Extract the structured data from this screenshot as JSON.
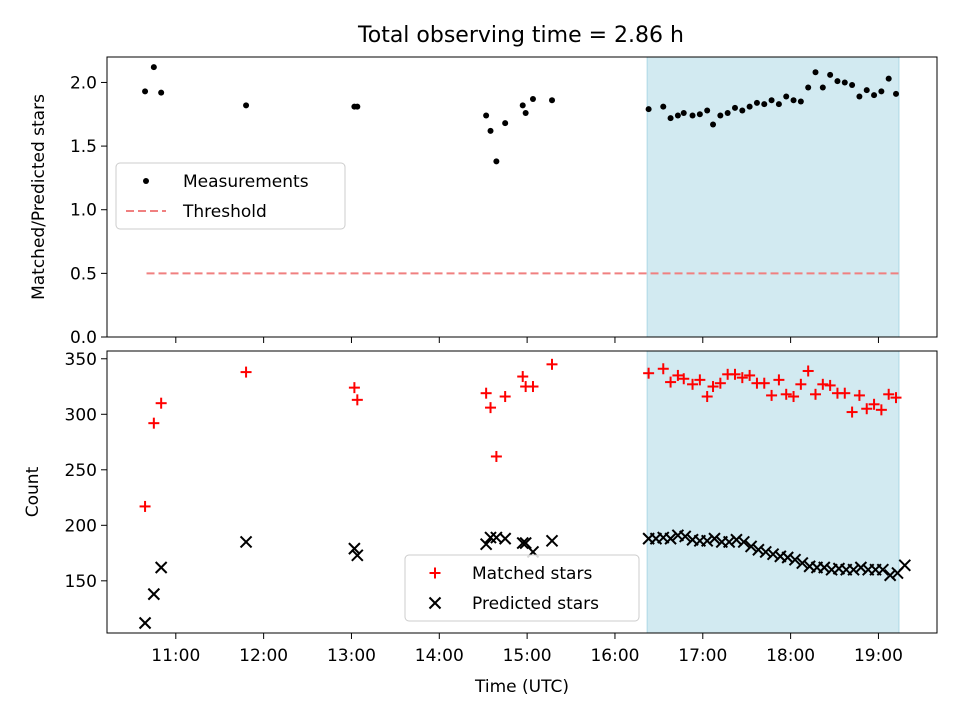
{
  "title": "Total observing time = 2.86 h",
  "colors": {
    "matched": "#ff0000",
    "predicted": "#000000",
    "threshold": "#f08080",
    "highlight": "#add8e6"
  },
  "chart_data": [
    {
      "type": "scatter",
      "panel": "top",
      "ylabel": "Matched/Predicted stars",
      "ylim": [
        0,
        2.2
      ],
      "yticks": [
        "0.0",
        "0.5",
        "1.0",
        "1.5",
        "2.0"
      ],
      "ytick_values": [
        0,
        0.5,
        1.0,
        1.5,
        2.0
      ],
      "xlim": [
        "10:13",
        "19:40"
      ],
      "highlight_span": [
        "16:22",
        "19:14"
      ],
      "legend_position": "center-left",
      "legend": [
        "Measurements",
        "Threshold"
      ],
      "threshold": {
        "name": "Threshold",
        "y": 0.5,
        "x_range": [
          "10:40",
          "19:14"
        ],
        "style": "dashed"
      },
      "series": [
        {
          "name": "Measurements",
          "x": [
            "10:39",
            "10:45",
            "10:50",
            "11:48",
            "13:02",
            "13:04",
            "14:32",
            "14:35",
            "14:39",
            "14:45",
            "14:57",
            "14:59",
            "15:04",
            "15:17",
            "16:23",
            "16:33",
            "16:38",
            "16:43",
            "16:47",
            "16:53",
            "16:58",
            "17:03",
            "17:07",
            "17:12",
            "17:17",
            "17:22",
            "17:27",
            "17:32",
            "17:37",
            "17:42",
            "17:47",
            "17:52",
            "17:57",
            "18:02",
            "18:07",
            "18:12",
            "18:17",
            "18:22",
            "18:27",
            "18:32",
            "18:37",
            "18:42",
            "18:47",
            "18:52",
            "18:57",
            "19:02",
            "19:07",
            "19:12"
          ],
          "y": [
            1.93,
            2.12,
            1.92,
            1.82,
            1.81,
            1.81,
            1.74,
            1.62,
            1.38,
            1.68,
            1.82,
            1.76,
            1.87,
            1.86,
            1.79,
            1.81,
            1.72,
            1.74,
            1.76,
            1.74,
            1.75,
            1.78,
            1.67,
            1.74,
            1.76,
            1.8,
            1.78,
            1.81,
            1.84,
            1.83,
            1.86,
            1.83,
            1.89,
            1.86,
            1.85,
            1.96,
            2.08,
            1.96,
            2.06,
            2.01,
            2.0,
            1.98,
            1.89,
            1.94,
            1.9,
            1.93,
            2.03,
            1.91
          ]
        }
      ]
    },
    {
      "type": "scatter",
      "panel": "bottom",
      "xlabel": "Time (UTC)",
      "ylabel": "Count",
      "ylim": [
        103,
        357
      ],
      "yticks": [
        "150",
        "200",
        "250",
        "300",
        "350"
      ],
      "ytick_values": [
        150,
        200,
        250,
        300,
        350
      ],
      "xlim": [
        "10:13",
        "19:40"
      ],
      "xticks": [
        "11:00",
        "12:00",
        "13:00",
        "14:00",
        "15:00",
        "16:00",
        "17:00",
        "18:00",
        "19:00"
      ],
      "highlight_span": [
        "16:22",
        "19:14"
      ],
      "legend_position": "lower-center",
      "legend": [
        "Matched stars",
        "Predicted stars"
      ],
      "series": [
        {
          "name": "Matched stars",
          "marker": "+",
          "x": [
            "10:39",
            "10:45",
            "10:50",
            "11:48",
            "13:02",
            "13:04",
            "14:32",
            "14:35",
            "14:39",
            "14:45",
            "14:57",
            "14:59",
            "15:04",
            "15:17",
            "16:23",
            "16:33",
            "16:38",
            "16:43",
            "16:47",
            "16:53",
            "16:58",
            "17:03",
            "17:07",
            "17:12",
            "17:17",
            "17:22",
            "17:27",
            "17:32",
            "17:37",
            "17:42",
            "17:47",
            "17:52",
            "17:57",
            "18:02",
            "18:07",
            "18:12",
            "18:17",
            "18:22",
            "18:27",
            "18:32",
            "18:37",
            "18:42",
            "18:47",
            "18:52",
            "18:57",
            "19:02",
            "19:07",
            "19:12"
          ],
          "y": [
            217,
            292,
            310,
            338,
            324,
            313,
            319,
            306,
            262,
            316,
            334,
            325,
            325,
            345,
            337,
            341,
            329,
            335,
            332,
            327,
            331,
            316,
            325,
            328,
            336,
            336,
            333,
            335,
            328,
            328,
            317,
            331,
            318,
            316,
            327,
            339,
            318,
            327,
            326,
            319,
            319,
            302,
            317,
            305,
            309,
            304,
            318,
            315
          ]
        },
        {
          "name": "Predicted stars",
          "marker": "x",
          "x": [
            "10:39",
            "10:45",
            "10:50",
            "11:48",
            "13:02",
            "13:04",
            "14:32",
            "14:35",
            "14:39",
            "14:45",
            "14:57",
            "14:59",
            "15:04",
            "15:17",
            "16:23",
            "16:28",
            "16:33",
            "16:38",
            "16:43",
            "16:48",
            "16:53",
            "16:58",
            "17:03",
            "17:08",
            "17:13",
            "17:18",
            "17:23",
            "17:28",
            "17:33",
            "17:38",
            "17:43",
            "17:48",
            "17:53",
            "17:58",
            "18:03",
            "18:08",
            "18:13",
            "18:18",
            "18:23",
            "18:28",
            "18:33",
            "18:38",
            "18:43",
            "18:48",
            "18:53",
            "18:58",
            "19:03",
            "19:08",
            "19:13",
            "19:18"
          ],
          "y": [
            112,
            138,
            162,
            185,
            179,
            173,
            183,
            189,
            189,
            188,
            184,
            184,
            176,
            186,
            188,
            188,
            189,
            188,
            191,
            190,
            187,
            186,
            186,
            188,
            185,
            185,
            187,
            185,
            181,
            178,
            176,
            174,
            172,
            171,
            169,
            166,
            163,
            162,
            162,
            160,
            161,
            160,
            160,
            162,
            160,
            160,
            160,
            155,
            157,
            164
          ]
        }
      ]
    }
  ]
}
